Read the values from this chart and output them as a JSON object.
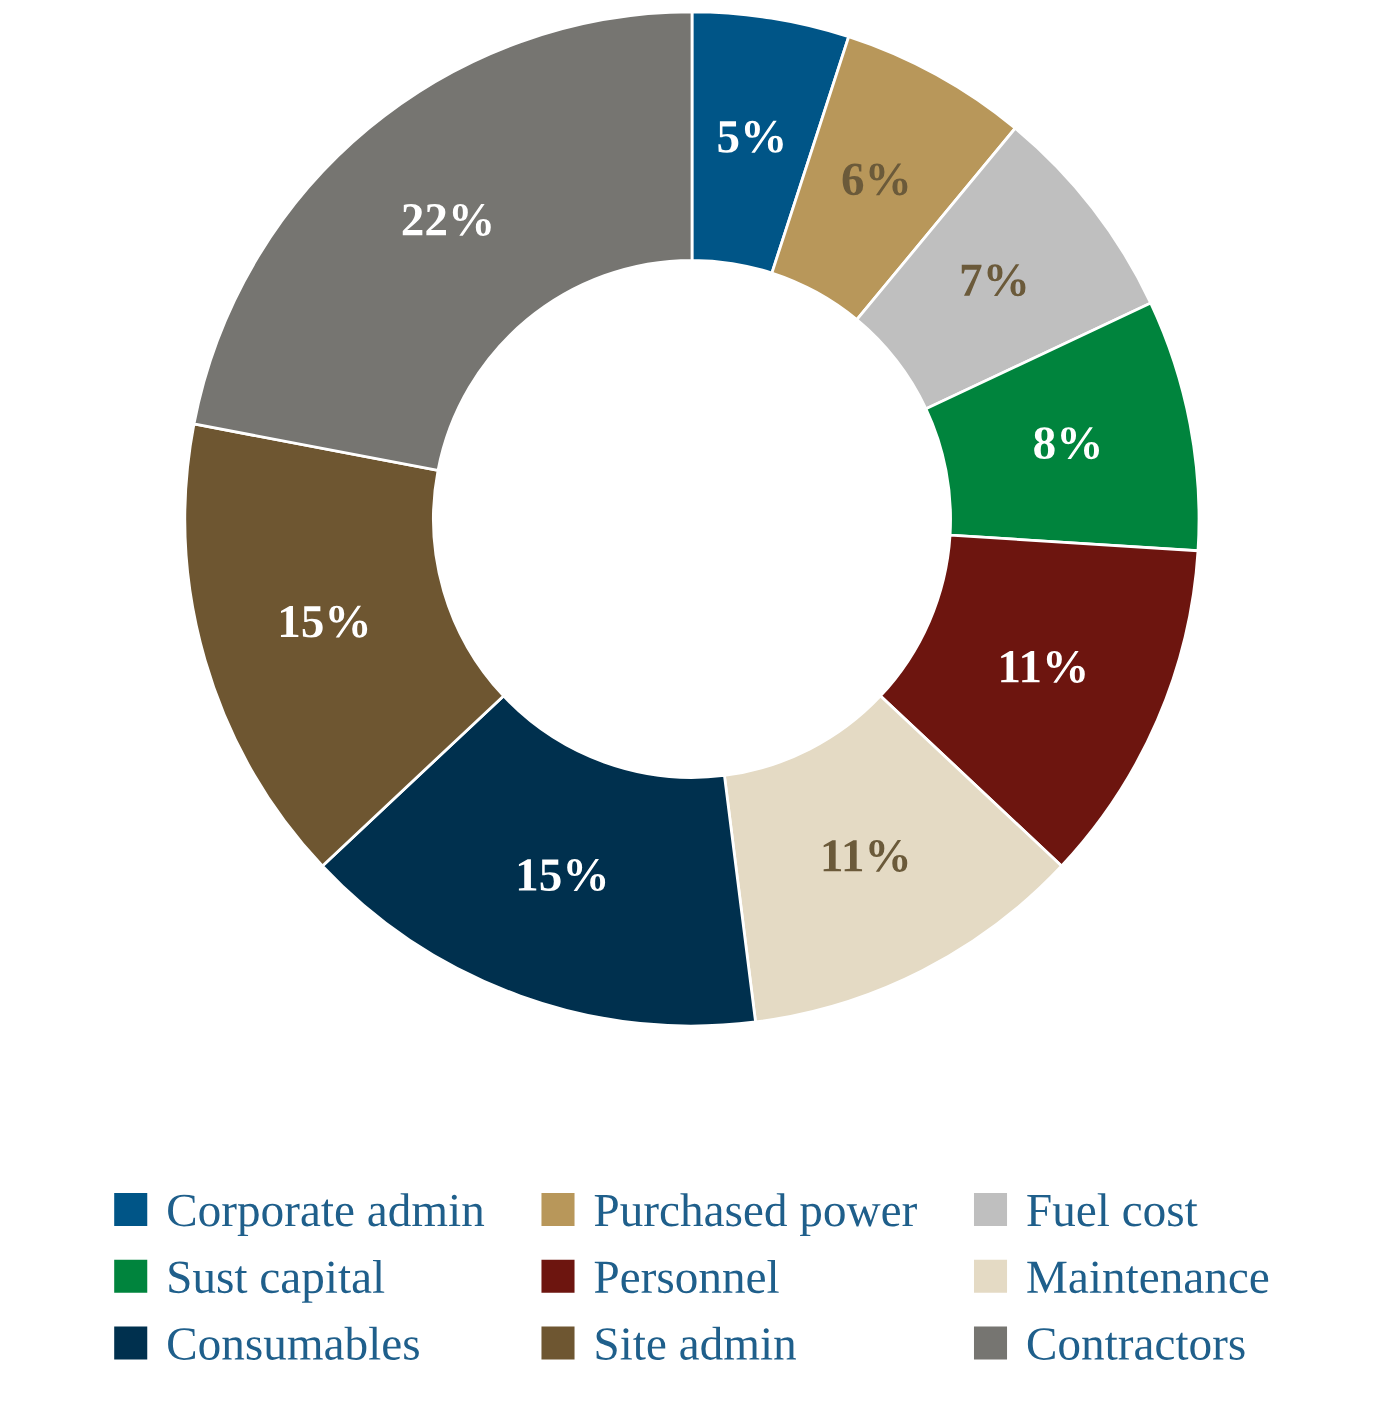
{
  "chart_data": {
    "type": "donut",
    "categories": [
      "Corporate admin",
      "Purchased power",
      "Fuel cost",
      "Sust capital",
      "Personnel",
      "Maintenance",
      "Consumables",
      "Site admin",
      "Contractors"
    ],
    "values": [
      5,
      6,
      7,
      8,
      11,
      11,
      15,
      15,
      22
    ],
    "value_labels": [
      "5%",
      "6%",
      "7%",
      "8%",
      "11%",
      "11%",
      "15%",
      "15%",
      "22%"
    ],
    "colors": [
      "#005587",
      "#b8975a",
      "#bfbfbf",
      "#00843d",
      "#6d150f",
      "#e4dac4",
      "#00304e",
      "#6e5631",
      "#767571"
    ],
    "legend": "bottom"
  }
}
